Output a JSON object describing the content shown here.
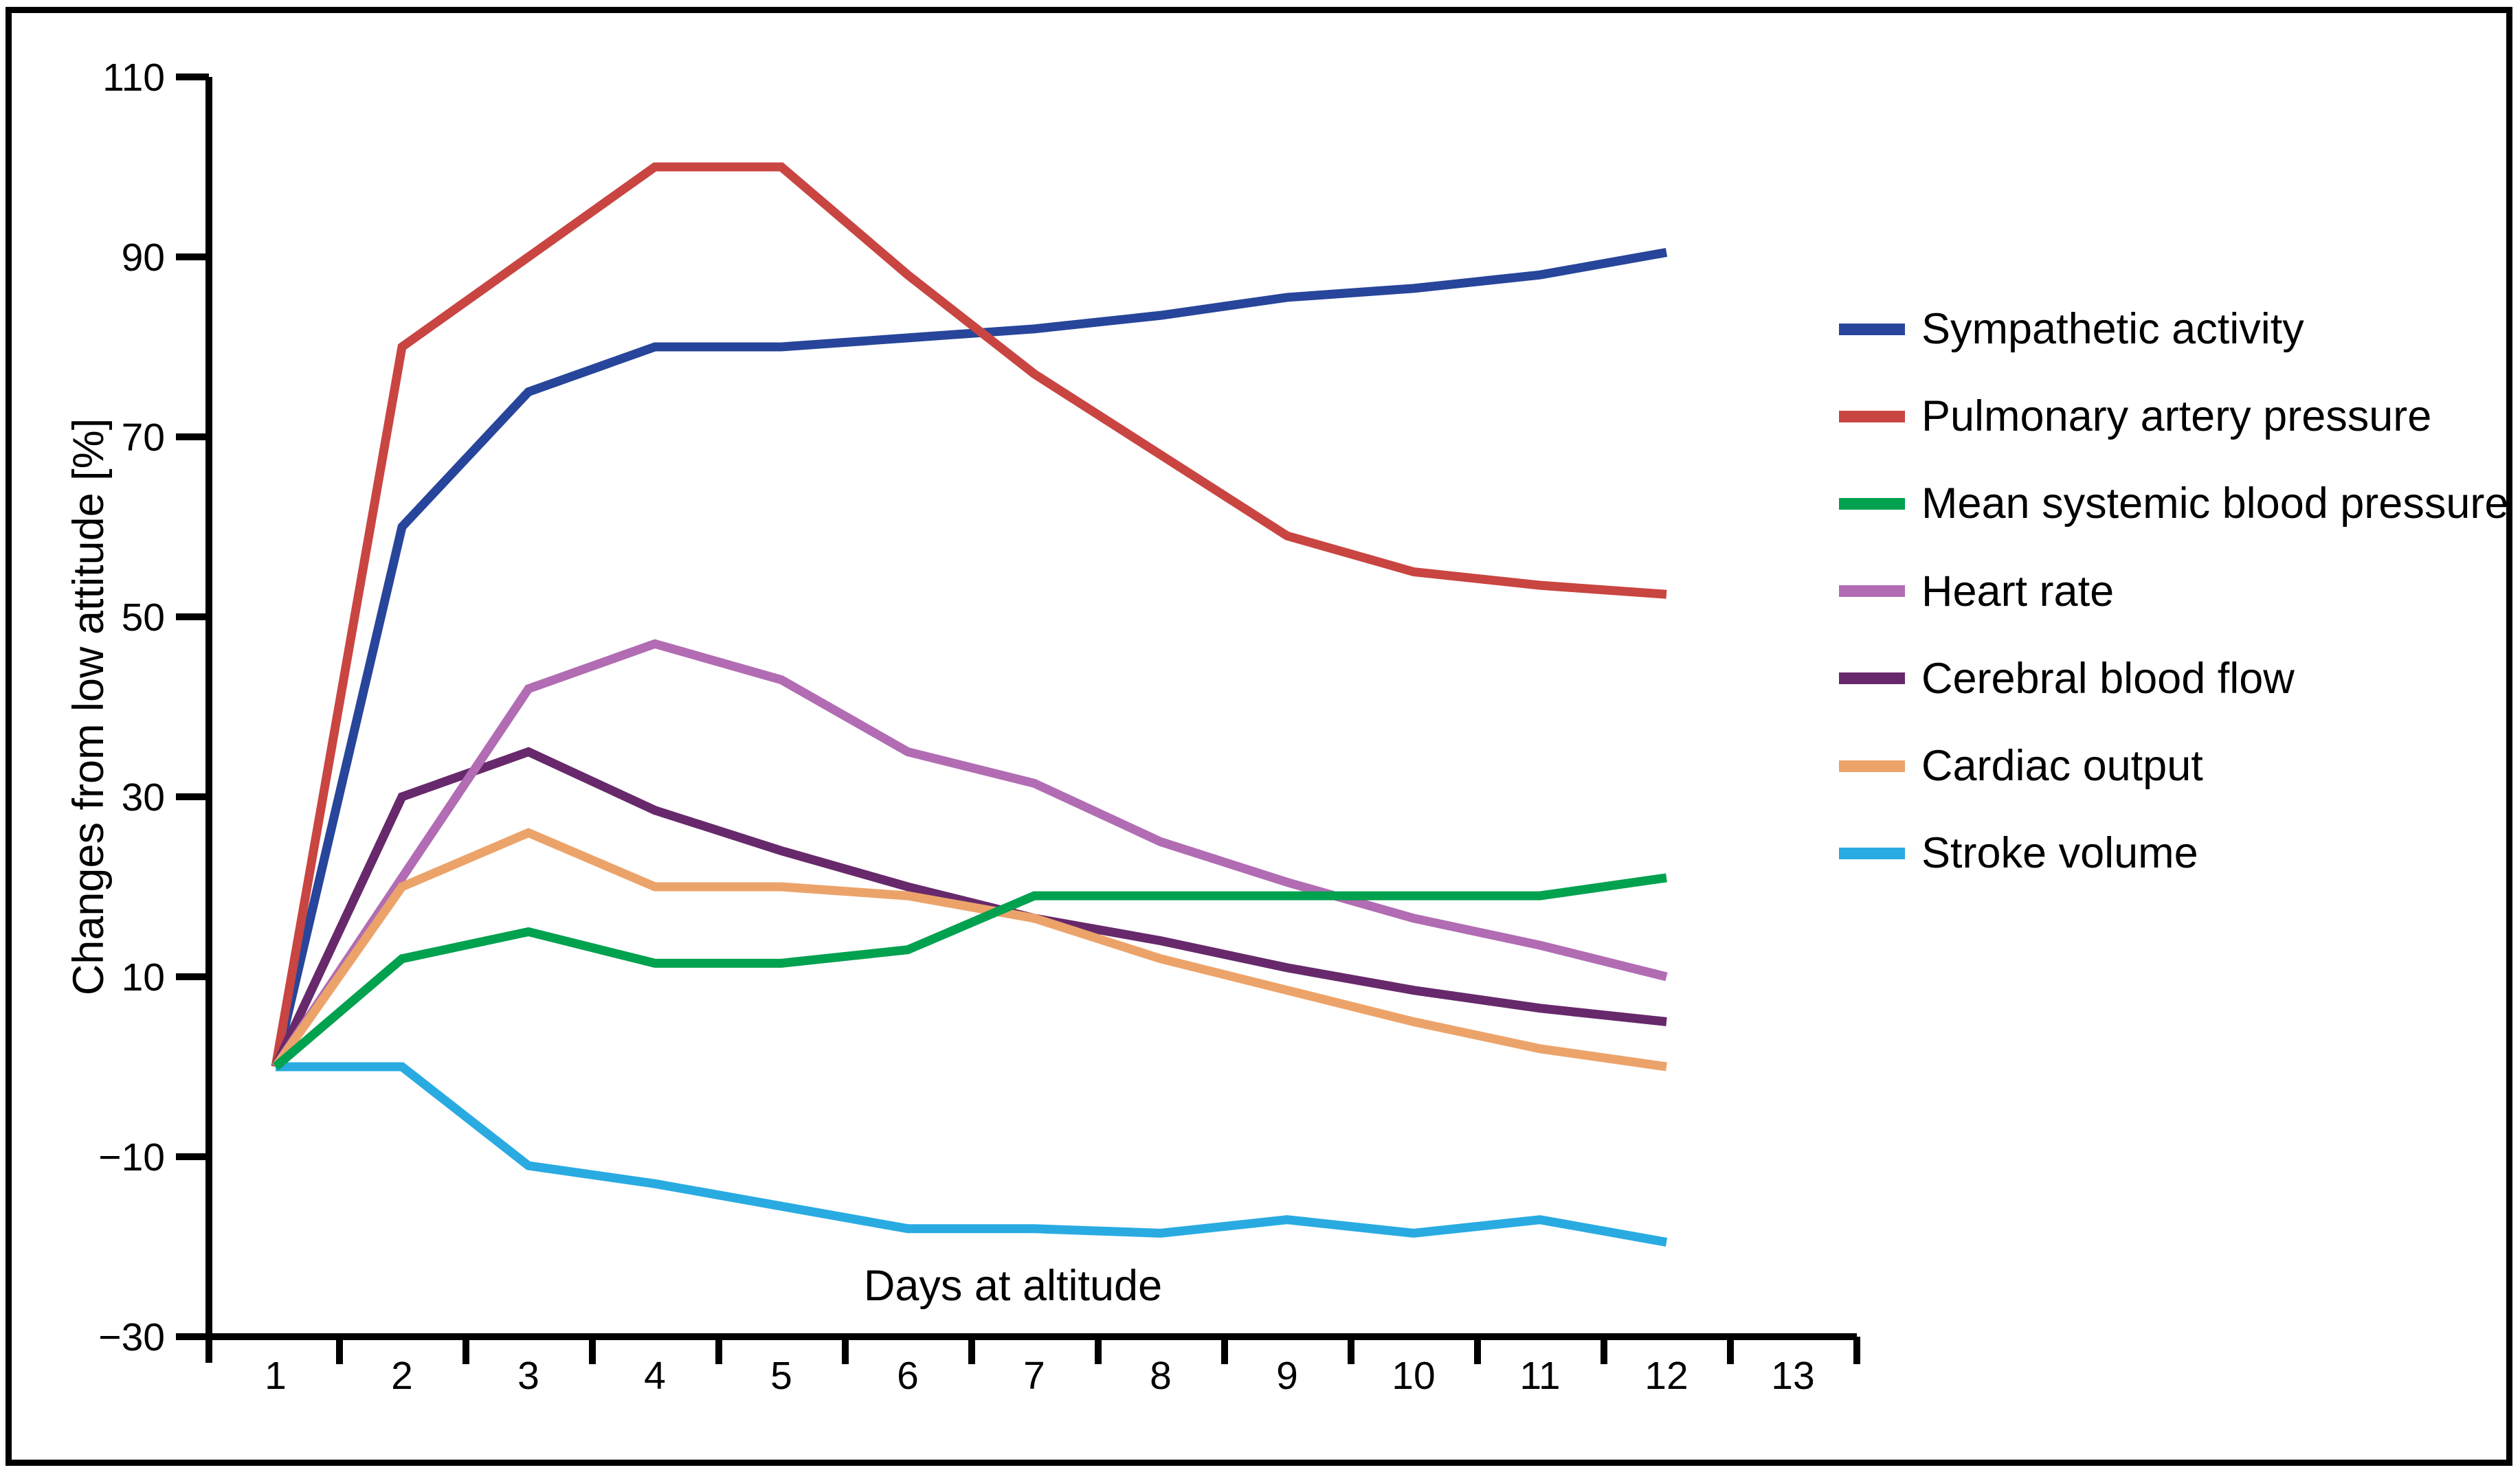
{
  "chart_data": {
    "type": "line",
    "title": "",
    "xlabel": "Days at altitude",
    "ylabel": "Changes from low attitude [%]",
    "days": [
      1,
      2,
      3,
      4,
      5,
      6,
      7,
      8,
      9,
      10,
      11,
      12
    ],
    "x_tick_labels": [
      "1",
      "2",
      "3",
      "4",
      "5",
      "6",
      "7",
      "8",
      "9",
      "10",
      "11",
      "12",
      "13"
    ],
    "y_ticks": [
      110,
      90,
      70,
      50,
      30,
      10,
      -10,
      -30
    ],
    "y_tick_labels": [
      "110",
      "90",
      "70",
      "50",
      "30",
      "10",
      "−10",
      "−30"
    ],
    "xlim": [
      0.5,
      13.5
    ],
    "ylim": [
      -33,
      113
    ],
    "grid": false,
    "legend_position": "right",
    "draw_order": [
      6,
      0,
      1,
      4,
      3,
      5,
      2
    ],
    "series": [
      {
        "name": "Sympathetic activity",
        "color": "#27459A",
        "values": [
          0,
          60,
          75,
          80,
          80,
          81,
          82,
          83.5,
          85.5,
          86.5,
          88,
          90.5
        ]
      },
      {
        "name": "Pulmonary artery pressure",
        "color": "#C94541",
        "values": [
          0,
          80,
          90,
          100,
          100,
          88,
          77,
          68,
          59,
          55,
          53.5,
          52.5
        ]
      },
      {
        "name": "Mean systemic blood pressure",
        "color": "#00A14F",
        "values": [
          0,
          12,
          15,
          11.5,
          11.5,
          13,
          19,
          19,
          19,
          19,
          19,
          21
        ]
      },
      {
        "name": "Heart rate",
        "color": "#B16CB3",
        "values": [
          0,
          21,
          42,
          47,
          43,
          35,
          31.5,
          25,
          20.5,
          16.5,
          13.5,
          10
        ]
      },
      {
        "name": "Cerebral blood flow",
        "color": "#67296B",
        "values": [
          0,
          30,
          35,
          28.5,
          24,
          20,
          16.5,
          14,
          11,
          8.5,
          6.5,
          5
        ]
      },
      {
        "name": "Cardiac output",
        "color": "#ECA36A",
        "values": [
          0,
          20,
          26,
          20,
          20,
          19,
          16.5,
          12,
          8.5,
          5,
          2,
          0
        ]
      },
      {
        "name": "Stroke volume",
        "color": "#29ABE2",
        "values": [
          0,
          0,
          -11,
          -13,
          -15.5,
          -18,
          -18,
          -18.5,
          -17,
          -18.5,
          -17,
          -19.5
        ]
      }
    ]
  }
}
